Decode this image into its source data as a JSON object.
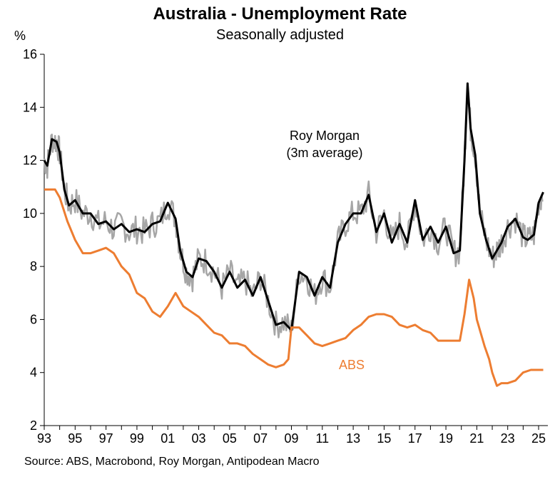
{
  "chart_data": {
    "type": "line",
    "title": "Australia - Unemployment Rate",
    "subtitle": "Seasonally adjusted",
    "ylabel": "%",
    "ylim": [
      2,
      16
    ],
    "y_ticks": [
      "2",
      "4",
      "6",
      "8",
      "10",
      "12",
      "14",
      "16"
    ],
    "xlim": [
      1993,
      2025.6
    ],
    "x_tick_labels": [
      "93",
      "95",
      "97",
      "99",
      "01",
      "03",
      "05",
      "07",
      "09",
      "11",
      "13",
      "15",
      "17",
      "19",
      "21",
      "23",
      "25"
    ],
    "source": "Source: ABS, Macrobond, Roy Morgan, Antipodean Macro",
    "annotations": {
      "roy_morgan_line1": "Roy Morgan",
      "roy_morgan_line2": "(3m average)",
      "abs": "ABS"
    },
    "colors": {
      "abs": "#ED7D31",
      "roy_morgan_3m": "#000000",
      "roy_morgan_monthly": "#A6A6A6",
      "axis": "#000000"
    },
    "series": [
      {
        "name": "Roy Morgan (3m average)",
        "x": [
          1993.0,
          1993.2,
          1993.5,
          1993.8,
          1994.0,
          1994.3,
          1994.6,
          1995.0,
          1995.5,
          1996.0,
          1996.5,
          1997.0,
          1997.5,
          1998.0,
          1998.5,
          1999.0,
          1999.5,
          2000.0,
          2000.5,
          2001.0,
          2001.5,
          2001.8,
          2002.2,
          2002.6,
          2003.0,
          2003.5,
          2004.0,
          2004.5,
          2005.0,
          2005.5,
          2006.0,
          2006.5,
          2007.0,
          2007.5,
          2008.0,
          2008.5,
          2009.0,
          2009.5,
          2010.0,
          2010.5,
          2011.0,
          2011.5,
          2012.0,
          2012.5,
          2013.0,
          2013.5,
          2014.0,
          2014.5,
          2015.0,
          2015.5,
          2016.0,
          2016.5,
          2017.0,
          2017.5,
          2018.0,
          2018.5,
          2019.0,
          2019.5,
          2019.9,
          2020.2,
          2020.4,
          2020.6,
          2020.9,
          2021.2,
          2021.6,
          2022.0,
          2022.3,
          2022.6,
          2023.0,
          2023.5,
          2024.0,
          2024.3,
          2024.7,
          2025.0,
          2025.3
        ],
        "values": [
          12.0,
          11.8,
          12.8,
          12.7,
          12.3,
          10.9,
          10.3,
          10.5,
          10.0,
          10.0,
          9.6,
          9.7,
          9.4,
          9.6,
          9.3,
          9.4,
          9.3,
          9.6,
          9.7,
          10.4,
          9.8,
          8.6,
          7.8,
          7.6,
          8.3,
          8.2,
          7.8,
          7.2,
          7.8,
          7.2,
          7.5,
          6.9,
          7.6,
          6.7,
          5.8,
          5.9,
          5.6,
          7.8,
          7.6,
          6.9,
          7.6,
          7.2,
          8.9,
          9.6,
          10.0,
          10.0,
          10.7,
          9.3,
          10.0,
          8.9,
          9.6,
          8.9,
          10.5,
          9.0,
          9.5,
          8.9,
          9.5,
          8.5,
          8.6,
          12.0,
          14.9,
          13.2,
          12.2,
          10.0,
          9.0,
          8.3,
          8.6,
          8.9,
          9.5,
          9.8,
          9.1,
          9.0,
          9.2,
          10.4,
          10.8
        ]
      },
      {
        "name": "ABS",
        "x": [
          1993.0,
          1993.3,
          1993.7,
          1994.0,
          1994.5,
          1995.0,
          1995.5,
          1996.0,
          1996.5,
          1997.0,
          1997.5,
          1998.0,
          1998.5,
          1999.0,
          1999.5,
          2000.0,
          2000.5,
          2001.0,
          2001.5,
          2002.0,
          2002.5,
          2003.0,
          2003.5,
          2004.0,
          2004.5,
          2005.0,
          2005.5,
          2006.0,
          2006.5,
          2007.0,
          2007.5,
          2008.0,
          2008.5,
          2008.8,
          2009.0,
          2009.5,
          2010.0,
          2010.5,
          2011.0,
          2011.5,
          2012.0,
          2012.5,
          2013.0,
          2013.5,
          2014.0,
          2014.5,
          2015.0,
          2015.5,
          2016.0,
          2016.5,
          2017.0,
          2017.5,
          2018.0,
          2018.5,
          2019.0,
          2019.5,
          2019.9,
          2020.2,
          2020.5,
          2020.8,
          2021.0,
          2021.5,
          2021.8,
          2022.0,
          2022.3,
          2022.6,
          2023.0,
          2023.5,
          2024.0,
          2024.5,
          2025.0,
          2025.3
        ],
        "values": [
          10.9,
          10.9,
          10.9,
          10.6,
          9.7,
          9.0,
          8.5,
          8.5,
          8.6,
          8.7,
          8.5,
          8.0,
          7.7,
          7.0,
          6.8,
          6.3,
          6.1,
          6.5,
          7.0,
          6.5,
          6.3,
          6.1,
          5.8,
          5.5,
          5.4,
          5.1,
          5.1,
          5.0,
          4.7,
          4.5,
          4.3,
          4.2,
          4.3,
          4.5,
          5.7,
          5.7,
          5.4,
          5.1,
          5.0,
          5.1,
          5.2,
          5.3,
          5.6,
          5.8,
          6.1,
          6.2,
          6.2,
          6.1,
          5.8,
          5.7,
          5.8,
          5.6,
          5.5,
          5.2,
          5.2,
          5.2,
          5.2,
          6.2,
          7.5,
          6.8,
          6.0,
          5.0,
          4.5,
          4.0,
          3.5,
          3.6,
          3.6,
          3.7,
          4.0,
          4.1,
          4.1,
          4.1
        ]
      }
    ]
  }
}
